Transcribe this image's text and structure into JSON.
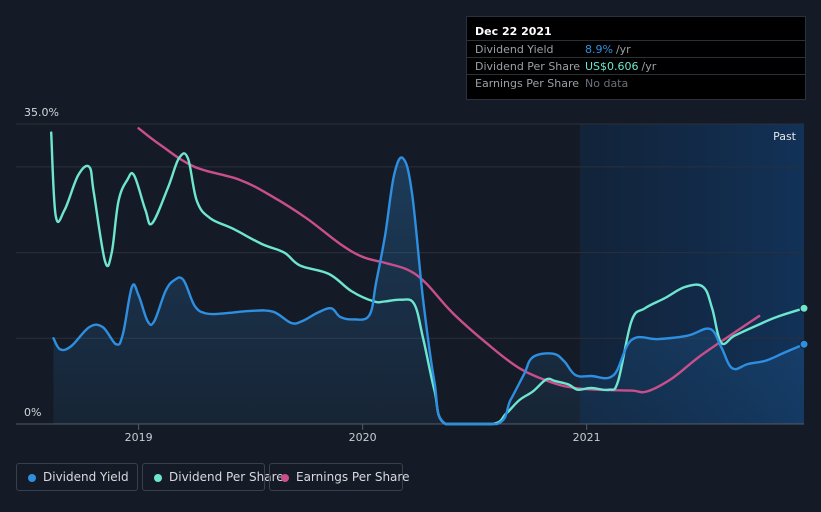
{
  "chart_data": {
    "type": "line",
    "title": "",
    "y_axis": {
      "top_label": "35.0%",
      "bottom_label": "0%",
      "ylim": [
        0,
        35
      ]
    },
    "x_ticks": [
      {
        "label": "2019",
        "x": 2019.0
      },
      {
        "label": "2020",
        "x": 2020.0
      },
      {
        "label": "2021",
        "x": 2021.0
      }
    ],
    "x_range": [
      2018.6,
      2021.97
    ],
    "past_label": "Past",
    "forecast_shade_start": 2020.97,
    "colors": {
      "dividend_yield": "#2e8fe0",
      "dividend_per_share": "#6ee6cf",
      "earnings_per_share": "#c94f8c",
      "grid": "#2a303b",
      "axis": "#555b66"
    },
    "series": [
      {
        "name": "Dividend Yield",
        "key": "dividend_yield",
        "filled": true,
        "end_marker": true,
        "points": [
          [
            2018.62,
            10.0
          ],
          [
            2018.65,
            8.7
          ],
          [
            2018.7,
            9.1
          ],
          [
            2018.78,
            11.3
          ],
          [
            2018.84,
            11.3
          ],
          [
            2018.9,
            9.3
          ],
          [
            2018.93,
            10.5
          ],
          [
            2018.97,
            16.0
          ],
          [
            2019.0,
            15.0
          ],
          [
            2019.04,
            12.0
          ],
          [
            2019.07,
            12.0
          ],
          [
            2019.12,
            15.5
          ],
          [
            2019.16,
            16.8
          ],
          [
            2019.2,
            16.8
          ],
          [
            2019.25,
            13.8
          ],
          [
            2019.3,
            12.9
          ],
          [
            2019.38,
            12.9
          ],
          [
            2019.5,
            13.2
          ],
          [
            2019.6,
            13.1
          ],
          [
            2019.68,
            11.8
          ],
          [
            2019.73,
            12.0
          ],
          [
            2019.8,
            13.0
          ],
          [
            2019.86,
            13.5
          ],
          [
            2019.9,
            12.5
          ],
          [
            2019.96,
            12.2
          ],
          [
            2020.03,
            12.7
          ],
          [
            2020.06,
            16.5
          ],
          [
            2020.1,
            22.0
          ],
          [
            2020.14,
            29.0
          ],
          [
            2020.18,
            31.0
          ],
          [
            2020.22,
            27.0
          ],
          [
            2020.27,
            14.5
          ],
          [
            2020.32,
            5.0
          ],
          [
            2020.37,
            0.0
          ],
          [
            2020.6,
            0.0
          ],
          [
            2020.66,
            2.8
          ],
          [
            2020.72,
            5.8
          ],
          [
            2020.76,
            7.8
          ],
          [
            2020.85,
            8.2
          ],
          [
            2020.9,
            7.3
          ],
          [
            2020.95,
            5.7
          ],
          [
            2021.02,
            5.6
          ],
          [
            2021.12,
            5.7
          ],
          [
            2021.2,
            9.8
          ],
          [
            2021.32,
            9.9
          ],
          [
            2021.45,
            10.3
          ],
          [
            2021.55,
            11.1
          ],
          [
            2021.6,
            9.0
          ],
          [
            2021.65,
            6.5
          ],
          [
            2021.72,
            7.0
          ],
          [
            2021.8,
            7.4
          ],
          [
            2021.88,
            8.3
          ],
          [
            2021.97,
            9.3
          ]
        ]
      },
      {
        "name": "Dividend Per Share",
        "key": "dividend_per_share",
        "end_marker": true,
        "points": [
          [
            2018.61,
            34.0
          ],
          [
            2018.63,
            24.3
          ],
          [
            2018.67,
            25.0
          ],
          [
            2018.73,
            29.0
          ],
          [
            2018.78,
            30.0
          ],
          [
            2018.8,
            27.0
          ],
          [
            2018.85,
            19.0
          ],
          [
            2018.88,
            20.0
          ],
          [
            2018.91,
            26.0
          ],
          [
            2018.95,
            28.5
          ],
          [
            2018.98,
            29.0
          ],
          [
            2019.03,
            25.0
          ],
          [
            2019.06,
            23.4
          ],
          [
            2019.13,
            27.5
          ],
          [
            2019.18,
            31.0
          ],
          [
            2019.22,
            31.0
          ],
          [
            2019.26,
            26.0
          ],
          [
            2019.32,
            24.0
          ],
          [
            2019.42,
            22.8
          ],
          [
            2019.55,
            21.0
          ],
          [
            2019.65,
            20.0
          ],
          [
            2019.72,
            18.5
          ],
          [
            2019.85,
            17.5
          ],
          [
            2019.95,
            15.5
          ],
          [
            2020.05,
            14.3
          ],
          [
            2020.1,
            14.3
          ],
          [
            2020.17,
            14.5
          ],
          [
            2020.23,
            14.0
          ],
          [
            2020.27,
            10.0
          ],
          [
            2020.32,
            4.0
          ],
          [
            2020.37,
            0.0
          ],
          [
            2020.58,
            0.0
          ],
          [
            2020.64,
            1.2
          ],
          [
            2020.7,
            2.8
          ],
          [
            2020.76,
            3.8
          ],
          [
            2020.82,
            5.2
          ],
          [
            2020.86,
            5.0
          ],
          [
            2020.92,
            4.6
          ],
          [
            2020.96,
            4.0
          ],
          [
            2021.02,
            4.2
          ],
          [
            2021.1,
            4.0
          ],
          [
            2021.14,
            5.0
          ],
          [
            2021.2,
            12.0
          ],
          [
            2021.26,
            13.5
          ],
          [
            2021.35,
            14.7
          ],
          [
            2021.44,
            16.0
          ],
          [
            2021.52,
            16.0
          ],
          [
            2021.56,
            13.5
          ],
          [
            2021.6,
            9.5
          ],
          [
            2021.66,
            10.3
          ],
          [
            2021.76,
            11.5
          ],
          [
            2021.85,
            12.5
          ],
          [
            2021.97,
            13.5
          ]
        ]
      },
      {
        "name": "Earnings Per Share",
        "key": "earnings_per_share",
        "points": [
          [
            2019.0,
            34.5
          ],
          [
            2019.1,
            32.5
          ],
          [
            2019.25,
            30.0
          ],
          [
            2019.45,
            28.5
          ],
          [
            2019.6,
            26.5
          ],
          [
            2019.75,
            24.0
          ],
          [
            2019.9,
            21.0
          ],
          [
            2020.0,
            19.5
          ],
          [
            2020.1,
            18.8
          ],
          [
            2020.2,
            18.0
          ],
          [
            2020.28,
            16.5
          ],
          [
            2020.4,
            13.0
          ],
          [
            2020.55,
            9.5
          ],
          [
            2020.7,
            6.5
          ],
          [
            2020.85,
            4.8
          ],
          [
            2020.95,
            4.2
          ],
          [
            2021.05,
            4.0
          ],
          [
            2021.2,
            3.9
          ],
          [
            2021.27,
            3.8
          ],
          [
            2021.38,
            5.3
          ],
          [
            2021.5,
            7.8
          ],
          [
            2021.65,
            10.5
          ],
          [
            2021.77,
            12.6
          ]
        ]
      }
    ]
  },
  "tooltip": {
    "date": "Dec 22 2021",
    "rows": [
      {
        "label": "Dividend Yield",
        "value": "8.9%",
        "unit": "/yr",
        "color": "#2e8fe0"
      },
      {
        "label": "Dividend Per Share",
        "value": "US$0.606",
        "unit": "/yr",
        "color": "#6ee6cf"
      },
      {
        "label": "Earnings Per Share",
        "value": "No data",
        "unit": "",
        "color": "#6b7079"
      }
    ]
  },
  "legend": {
    "items": [
      {
        "label": "Dividend Yield",
        "color": "#2e8fe0"
      },
      {
        "label": "Dividend Per Share",
        "color": "#6ee6cf"
      },
      {
        "label": "Earnings Per Share",
        "color": "#c94f8c"
      }
    ]
  }
}
